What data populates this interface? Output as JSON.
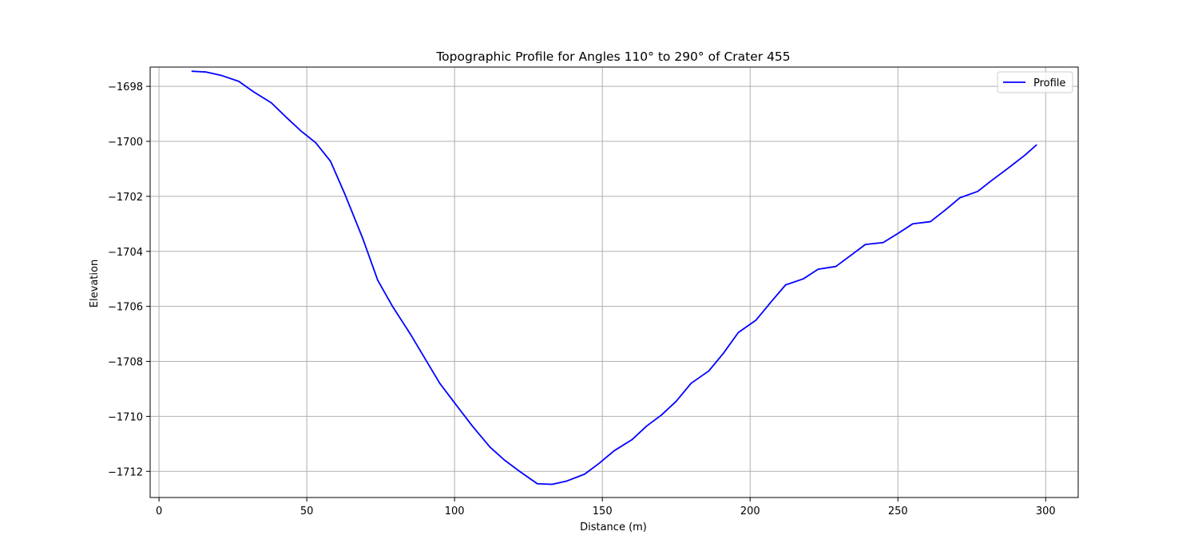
{
  "chart_data": {
    "type": "line",
    "title": "Topographic Profile for Angles 110° to 290° of Crater 455",
    "xlabel": "Distance (m)",
    "ylabel": "Elevation",
    "xlim": [
      -3,
      311
    ],
    "ylim": [
      -1712.95,
      -1697.3
    ],
    "xticks": [
      0,
      50,
      100,
      150,
      200,
      250,
      300
    ],
    "yticks": [
      -1698,
      -1700,
      -1702,
      -1704,
      -1706,
      -1708,
      -1710,
      -1712
    ],
    "grid": true,
    "legend_position": "top-right",
    "series": [
      {
        "name": "Profile",
        "color": "#0000ff",
        "x": [
          11,
          16,
          21,
          27,
          32,
          38,
          43,
          48,
          53,
          58,
          63,
          69,
          74,
          79,
          85,
          90,
          95,
          101,
          106,
          112,
          117,
          122,
          128,
          133,
          138,
          144,
          149,
          154,
          160,
          165,
          170,
          175,
          180,
          186,
          191,
          196,
          202,
          207,
          212,
          218,
          223,
          229,
          234,
          239,
          245,
          250,
          255,
          261,
          266,
          271,
          277,
          282,
          287,
          293,
          297
        ],
        "y": [
          -1697.45,
          -1697.48,
          -1697.6,
          -1697.82,
          -1698.2,
          -1698.6,
          -1699.12,
          -1699.62,
          -1700.05,
          -1700.72,
          -1701.95,
          -1703.55,
          -1705.05,
          -1706.0,
          -1707.0,
          -1707.9,
          -1708.8,
          -1709.65,
          -1710.35,
          -1711.12,
          -1711.6,
          -1712.0,
          -1712.45,
          -1712.47,
          -1712.35,
          -1712.1,
          -1711.7,
          -1711.25,
          -1710.85,
          -1710.35,
          -1709.95,
          -1709.45,
          -1708.8,
          -1708.35,
          -1707.7,
          -1706.95,
          -1706.5,
          -1705.85,
          -1705.22,
          -1705.0,
          -1704.65,
          -1704.55,
          -1704.15,
          -1703.75,
          -1703.68,
          -1703.35,
          -1703.0,
          -1702.92,
          -1702.5,
          -1702.05,
          -1701.82,
          -1701.4,
          -1701.0,
          -1700.5,
          -1700.12
        ]
      }
    ]
  }
}
